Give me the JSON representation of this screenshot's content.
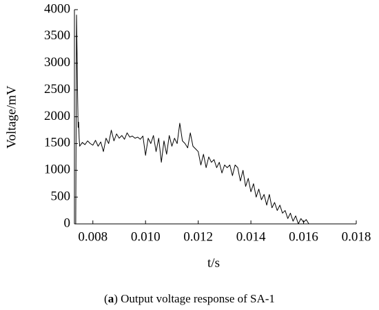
{
  "chart_data": {
    "type": "line",
    "xlabel": "t/s",
    "ylabel": "Voltage/mV",
    "caption": [
      "(",
      "a",
      ") Output voltage response of SA-1"
    ],
    "x": [
      0.00735,
      0.00738,
      0.0074,
      0.00742,
      0.00744,
      0.00746,
      0.00748,
      0.0075,
      0.0076,
      0.0077,
      0.0078,
      0.0079,
      0.008,
      0.0081,
      0.0082,
      0.0083,
      0.0084,
      0.0085,
      0.0086,
      0.0087,
      0.0088,
      0.0089,
      0.009,
      0.0091,
      0.0092,
      0.0093,
      0.0094,
      0.0095,
      0.0096,
      0.0097,
      0.0098,
      0.0099,
      0.01,
      0.0101,
      0.0102,
      0.0103,
      0.0104,
      0.0105,
      0.0106,
      0.0107,
      0.0108,
      0.0109,
      0.011,
      0.0111,
      0.0112,
      0.0113,
      0.0114,
      0.0115,
      0.0116,
      0.0117,
      0.0118,
      0.0119,
      0.012,
      0.0121,
      0.0122,
      0.0123,
      0.0124,
      0.0125,
      0.0126,
      0.0127,
      0.0128,
      0.0129,
      0.013,
      0.0131,
      0.0132,
      0.0133,
      0.0134,
      0.0135,
      0.0136,
      0.0137,
      0.0138,
      0.0139,
      0.014,
      0.0141,
      0.0142,
      0.0143,
      0.0144,
      0.0145,
      0.0146,
      0.0147,
      0.0148,
      0.0149,
      0.015,
      0.0151,
      0.0152,
      0.0153,
      0.0154,
      0.0155,
      0.0156,
      0.0157,
      0.0158,
      0.0159,
      0.016,
      0.0161,
      0.0162
    ],
    "series": [
      {
        "color": "#000000",
        "values": [
          0,
          3900,
          3200,
          2400,
          1800,
          1900,
          1600,
          1450,
          1520,
          1480,
          1550,
          1500,
          1470,
          1560,
          1450,
          1530,
          1350,
          1600,
          1500,
          1750,
          1550,
          1680,
          1600,
          1650,
          1580,
          1700,
          1620,
          1640,
          1600,
          1620,
          1580,
          1640,
          1280,
          1600,
          1500,
          1650,
          1350,
          1600,
          1150,
          1550,
          1300,
          1650,
          1450,
          1600,
          1500,
          1880,
          1550,
          1500,
          1420,
          1700,
          1450,
          1400,
          1350,
          1100,
          1300,
          1050,
          1250,
          1150,
          1200,
          1050,
          1150,
          950,
          1100,
          1050,
          1100,
          900,
          1100,
          1050,
          800,
          1000,
          700,
          850,
          600,
          750,
          500,
          650,
          450,
          550,
          350,
          550,
          300,
          400,
          250,
          350,
          200,
          250,
          100,
          200,
          50,
          150,
          0,
          100,
          30,
          80,
          0
        ]
      }
    ],
    "xlim": [
      0.0073,
      0.018
    ],
    "xticks": [
      {
        "value": 0.008,
        "label": "0.008"
      },
      {
        "value": 0.01,
        "label": "0.010"
      },
      {
        "value": 0.012,
        "label": "0.012"
      },
      {
        "value": 0.014,
        "label": "0.014"
      },
      {
        "value": 0.016,
        "label": "0.016"
      },
      {
        "value": 0.018,
        "label": "0.018"
      }
    ],
    "ylim": [
      0,
      4000
    ],
    "yticks": [
      0,
      500,
      1000,
      1500,
      2000,
      2500,
      3000,
      3500,
      4000
    ],
    "grid": false
  }
}
